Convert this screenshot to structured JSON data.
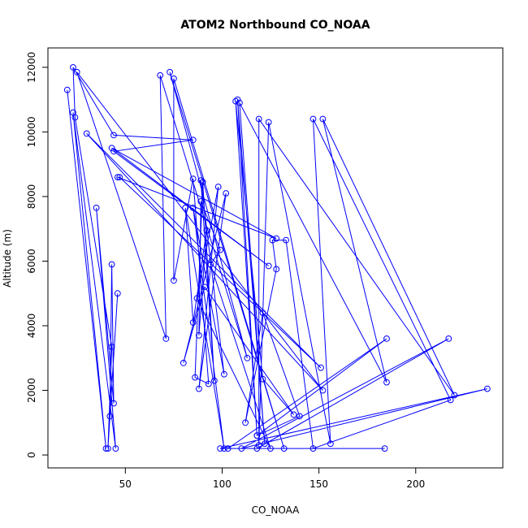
{
  "chart_data": {
    "type": "line",
    "title": "ATOM2 Northbound CO_NOAA",
    "xlabel": "CO_NOAA",
    "ylabel": "Altitude (m)",
    "xlim": [
      10,
      245
    ],
    "ylim": [
      -400,
      12600
    ],
    "x_ticks": [
      50,
      100,
      150,
      200
    ],
    "y_ticks": [
      0,
      2000,
      4000,
      6000,
      8000,
      10000,
      12000
    ],
    "x_tick_labels": [
      "50",
      "100",
      "150",
      "200"
    ],
    "y_tick_labels": [
      "0",
      "2000",
      "4000",
      "6000",
      "8000",
      "10000",
      "12000"
    ],
    "grid": false,
    "series": [
      {
        "color": "#0000ff",
        "marker": "open-circle",
        "points": [
          [
            20,
            11300
          ],
          [
            40,
            200
          ],
          [
            23,
            10600
          ],
          [
            45,
            200
          ],
          [
            35,
            7650
          ],
          [
            44,
            1600
          ],
          [
            43,
            5900
          ],
          [
            42,
            1200
          ],
          [
            46,
            5000
          ],
          [
            41,
            200
          ],
          [
            43,
            3350
          ],
          [
            24,
            10450
          ],
          [
            23,
            12000
          ],
          [
            44,
            9900
          ],
          [
            85,
            9750
          ],
          [
            44,
            9400
          ],
          [
            124,
            5850
          ],
          [
            43,
            9500
          ],
          [
            128,
            6700
          ],
          [
            46,
            8600
          ],
          [
            47,
            8600
          ],
          [
            151,
            2700
          ],
          [
            30,
            9950
          ],
          [
            152,
            2000
          ],
          [
            25,
            11850
          ],
          [
            71,
            3600
          ],
          [
            68,
            11750
          ],
          [
            113,
            3000
          ],
          [
            73,
            11850
          ],
          [
            132,
            200
          ],
          [
            75,
            11650
          ],
          [
            75,
            5400
          ],
          [
            85,
            8550
          ],
          [
            93,
            2200
          ],
          [
            86,
            2400
          ],
          [
            90,
            8450
          ],
          [
            96,
            2300
          ],
          [
            89,
            8500
          ],
          [
            101,
            2500
          ],
          [
            85,
            7650
          ],
          [
            101,
            200
          ],
          [
            81,
            7650
          ],
          [
            85,
            4100
          ],
          [
            92,
            6950
          ],
          [
            88,
            3700
          ],
          [
            89,
            7850
          ],
          [
            99,
            6350
          ],
          [
            94,
            5900
          ],
          [
            125,
            200
          ],
          [
            87,
            4850
          ],
          [
            98,
            8300
          ],
          [
            88,
            2050
          ],
          [
            102,
            8100
          ],
          [
            80,
            2850
          ],
          [
            91,
            5200
          ],
          [
            137,
            1250
          ],
          [
            121,
            2350
          ],
          [
            107,
            10950
          ],
          [
            118,
            600
          ],
          [
            108,
            11000
          ],
          [
            122,
            350
          ],
          [
            109,
            10900
          ],
          [
            185,
            2250
          ],
          [
            152,
            10400
          ],
          [
            220,
            1850
          ],
          [
            119,
            10400
          ],
          [
            119,
            300
          ],
          [
            124,
            10300
          ],
          [
            156,
            350
          ],
          [
            147,
            10400
          ],
          [
            218,
            1700
          ],
          [
            147,
            200
          ],
          [
            133,
            6650
          ],
          [
            126,
            6650
          ],
          [
            128,
            5750
          ],
          [
            112,
            1000
          ],
          [
            121,
            4400
          ],
          [
            140,
            1200
          ],
          [
            118,
            600
          ],
          [
            185,
            3600
          ],
          [
            103,
            200
          ],
          [
            118,
            200
          ],
          [
            217,
            3600
          ],
          [
            110,
            200
          ],
          [
            237,
            2050
          ],
          [
            99,
            200
          ],
          [
            184,
            200
          ]
        ]
      }
    ]
  }
}
